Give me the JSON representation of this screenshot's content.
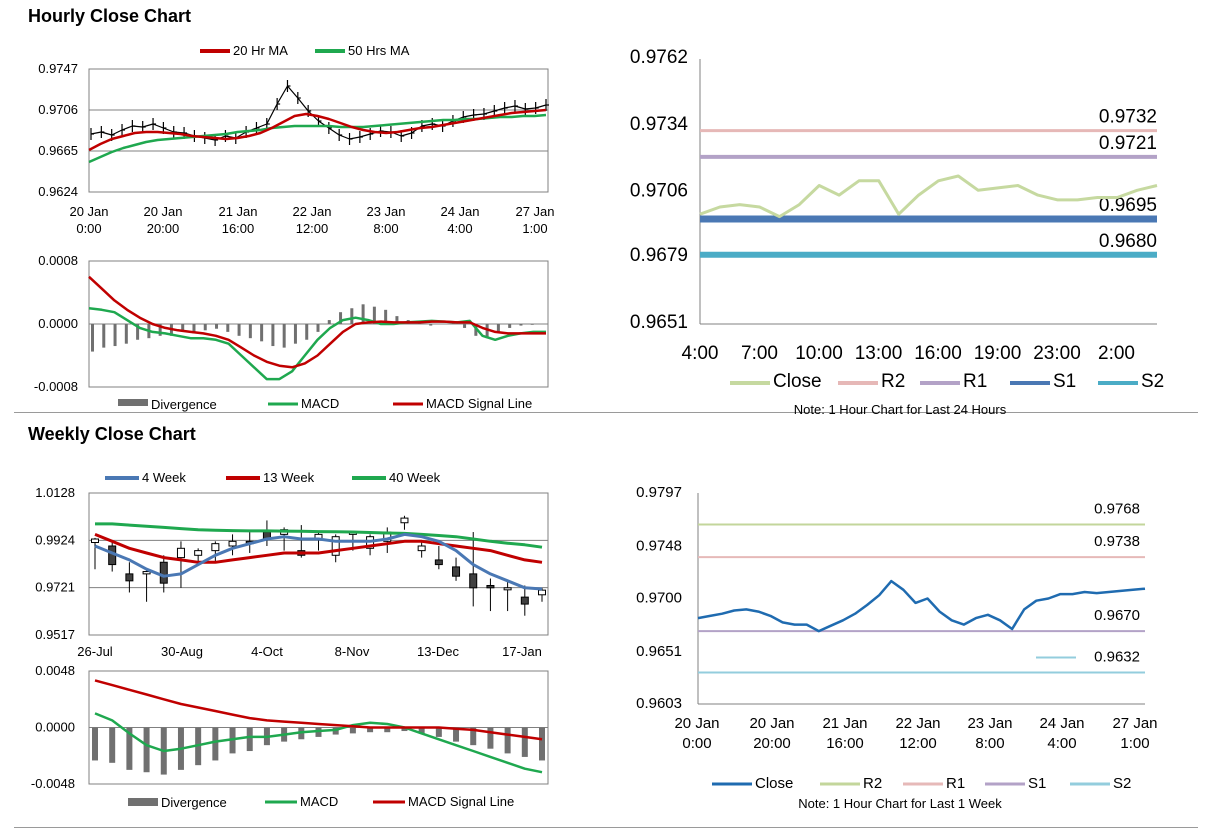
{
  "sections": {
    "hourly_title": "Hourly Close Chart",
    "weekly_title": "Weekly Close Chart"
  },
  "colors": {
    "ma20": "#c00000",
    "ma50": "#1fa84f",
    "price": "#000000",
    "divergence": "#707070",
    "macd": "#1fa84f",
    "signal": "#c00000",
    "close_light": "#c6d9a0",
    "r2_light": "#e6b8b7",
    "r1_light": "#b3a2c7",
    "s1_dark": "#4a78b4",
    "s2_dark": "#4bacc6",
    "close_blue": "#1f6bb0",
    "r2_green": "#c3d69b",
    "r1_pink": "#e6b9b8",
    "s1_purple": "#b3a2c7",
    "s2_light": "#93cddd"
  },
  "chart_data": [
    {
      "id": "hourly_price",
      "type": "line",
      "title": "Hourly Close Chart",
      "legend": [
        "20 Hr MA",
        "50 Hrs MA"
      ],
      "y_ticks": [
        "0.9747",
        "0.9706",
        "0.9665",
        "0.9624"
      ],
      "ylim": [
        0.9624,
        0.9747
      ],
      "x_ticks": [
        [
          "20 Jan",
          "0:00"
        ],
        [
          "20 Jan",
          "20:00"
        ],
        [
          "21 Jan",
          "16:00"
        ],
        [
          "22 Jan",
          "12:00"
        ],
        [
          "23 Jan",
          "8:00"
        ],
        [
          "24 Jan",
          "4:00"
        ],
        [
          "27 Jan",
          "1:00"
        ]
      ],
      "price": [
        0.9682,
        0.9684,
        0.9681,
        0.9686,
        0.969,
        0.9689,
        0.9692,
        0.9688,
        0.9684,
        0.9683,
        0.968,
        0.9678,
        0.9676,
        0.968,
        0.9678,
        0.9684,
        0.9688,
        0.9692,
        0.9712,
        0.973,
        0.9718,
        0.9705,
        0.9695,
        0.9688,
        0.9681,
        0.9677,
        0.9679,
        0.9682,
        0.9685,
        0.9684,
        0.968,
        0.9683,
        0.969,
        0.9692,
        0.969,
        0.9695,
        0.9699,
        0.9701,
        0.9702,
        0.9705,
        0.9708,
        0.971,
        0.9707,
        0.9708,
        0.9711
      ],
      "series": [
        {
          "name": "20 Hr MA",
          "values": [
            0.9666,
            0.9672,
            0.9677,
            0.968,
            0.9683,
            0.9684,
            0.9684,
            0.9683,
            0.9682,
            0.968,
            0.9679,
            0.9678,
            0.9677,
            0.9678,
            0.968,
            0.9683,
            0.9688,
            0.9694,
            0.97,
            0.9702,
            0.97,
            0.9697,
            0.9693,
            0.9689,
            0.9686,
            0.9684,
            0.9683,
            0.9684,
            0.9686,
            0.9688,
            0.9689,
            0.9691,
            0.9693,
            0.9695,
            0.9697,
            0.9699,
            0.9701,
            0.9703,
            0.9704,
            0.9705,
            0.9706
          ]
        },
        {
          "name": "50 Hrs MA",
          "values": [
            0.9654,
            0.9659,
            0.9664,
            0.9668,
            0.9671,
            0.9674,
            0.9676,
            0.9677,
            0.9678,
            0.9679,
            0.968,
            0.9681,
            0.9682,
            0.9684,
            0.9685,
            0.9686,
            0.9688,
            0.9689,
            0.969,
            0.969,
            0.969,
            0.969,
            0.9689,
            0.9689,
            0.9689,
            0.969,
            0.9691,
            0.9692,
            0.9693,
            0.9694,
            0.9695,
            0.9696,
            0.9696,
            0.9697,
            0.9697,
            0.9698,
            0.9699,
            0.9699,
            0.97,
            0.97,
            0.9701
          ]
        }
      ]
    },
    {
      "id": "hourly_macd",
      "type": "line",
      "legend": [
        "Divergence",
        "MACD",
        "MACD Signal Line"
      ],
      "y_ticks": [
        "0.0008",
        "0.0000",
        "-0.0008"
      ],
      "ylim": [
        -0.0008,
        0.0008
      ],
      "divergence": [
        -0.00035,
        -0.0003,
        -0.00028,
        -0.00025,
        -0.0002,
        -0.00018,
        -0.00015,
        -0.00015,
        -0.0001,
        -0.00012,
        -8e-05,
        -6e-05,
        -0.0001,
        -0.00015,
        -0.00018,
        -0.00022,
        -0.00028,
        -0.0003,
        -0.00025,
        -0.0002,
        -0.0001,
        5e-05,
        0.00015,
        0.0002,
        0.00025,
        0.00022,
        0.00018,
        0.0001,
        5e-05,
        2e-05,
        -2e-05,
        0.0,
        2e-05,
        -5e-05,
        -0.00015,
        -0.00018,
        -0.0001,
        -5e-05,
        -2e-05,
        -1e-05,
        0.0
      ],
      "series": [
        {
          "name": "MACD",
          "values": [
            0.0002,
            0.00018,
            0.00015,
            5e-05,
            -5e-05,
            -0.0001,
            -0.00012,
            -0.00015,
            -0.00018,
            -0.00018,
            -0.0002,
            -0.00025,
            -0.0004,
            -0.00055,
            -0.0007,
            -0.0007,
            -0.0006,
            -0.0004,
            -0.0002,
            -5e-05,
            5e-05,
            8e-05,
            5e-05,
            0.0,
            0.0,
            2e-05,
            3e-05,
            4e-05,
            3e-05,
            2e-05,
            4e-05,
            -0.00015,
            -0.0002,
            -0.00015,
            -0.00012,
            -0.0001,
            -0.0001
          ]
        },
        {
          "name": "MACD Signal Line",
          "values": [
            0.0006,
            0.00045,
            0.0003,
            0.00018,
            8e-05,
            0.0,
            -5e-05,
            -8e-05,
            -0.0001,
            -0.00012,
            -0.00015,
            -0.0002,
            -0.0003,
            -0.0004,
            -0.00048,
            -0.00053,
            -0.00055,
            -0.0005,
            -0.0004,
            -0.00025,
            -0.0001,
            0.0,
            2e-05,
            3e-05,
            2e-05,
            2e-05,
            2e-05,
            3e-05,
            3e-05,
            2e-05,
            2e-05,
            -5e-05,
            -0.0001,
            -0.00012,
            -0.00012,
            -0.00012,
            -0.00012
          ]
        }
      ]
    },
    {
      "id": "hourly_pivots",
      "type": "line",
      "note": "Note: 1 Hour Chart for Last 24 Hours",
      "y_ticks": [
        "0.9762",
        "0.9734",
        "0.9706",
        "0.9679",
        "0.9651"
      ],
      "ylim": [
        0.9651,
        0.9762
      ],
      "x_ticks": [
        "4:00",
        "7:00",
        "10:00",
        "13:00",
        "16:00",
        "19:00",
        "23:00",
        "2:00"
      ],
      "legend": [
        "Close",
        "R2",
        "R1",
        "S1",
        "S2"
      ],
      "levels": {
        "R2": 0.9732,
        "R1": 0.9721,
        "S1": 0.9695,
        "S2": 0.968
      },
      "level_labels": [
        "0.9732",
        "0.9721",
        "0.9695",
        "0.9680"
      ],
      "close": [
        0.9697,
        0.97,
        0.9701,
        0.97,
        0.9696,
        0.9701,
        0.9709,
        0.9705,
        0.9711,
        0.9711,
        0.9697,
        0.9705,
        0.9711,
        0.9713,
        0.9707,
        0.9708,
        0.9709,
        0.9705,
        0.9703,
        0.9703,
        0.9704,
        0.9704,
        0.9707,
        0.9709
      ]
    },
    {
      "id": "weekly_price",
      "type": "line",
      "title": "Weekly Close Chart",
      "legend": [
        "4 Week",
        "13 Week",
        "40 Week"
      ],
      "y_ticks": [
        "1.0128",
        "0.9924",
        "0.9721",
        "0.9517"
      ],
      "ylim": [
        0.9517,
        1.0128
      ],
      "x_ticks": [
        "26-Jul",
        "30-Aug",
        "4-Oct",
        "8-Nov",
        "13-Dec",
        "17-Jan"
      ],
      "candles": [
        [
          0.9915,
          0.9935,
          0.98,
          0.993
        ],
        [
          0.99,
          0.992,
          0.979,
          0.982
        ],
        [
          0.978,
          0.983,
          0.97,
          0.975
        ],
        [
          0.978,
          0.98,
          0.966,
          0.979
        ],
        [
          0.983,
          0.986,
          0.97,
          0.974
        ],
        [
          0.985,
          0.992,
          0.972,
          0.989
        ],
        [
          0.986,
          0.989,
          0.982,
          0.988
        ],
        [
          0.988,
          0.992,
          0.983,
          0.991
        ],
        [
          0.99,
          0.995,
          0.986,
          0.992
        ],
        [
          0.992,
          0.996,
          0.987,
          0.991
        ],
        [
          0.996,
          1.001,
          0.99,
          0.993
        ],
        [
          0.995,
          0.998,
          0.988,
          0.997
        ],
        [
          0.988,
          0.999,
          0.985,
          0.986
        ],
        [
          0.993,
          0.996,
          0.988,
          0.995
        ],
        [
          0.986,
          0.995,
          0.983,
          0.994
        ],
        [
          0.995,
          0.996,
          0.988,
          0.996
        ],
        [
          0.989,
          0.995,
          0.986,
          0.994
        ],
        [
          0.992,
          0.998,
          0.987,
          0.996
        ],
        [
          1.0,
          1.003,
          0.997,
          1.002
        ],
        [
          0.988,
          0.992,
          0.985,
          0.99
        ],
        [
          0.984,
          0.99,
          0.98,
          0.982
        ],
        [
          0.981,
          0.985,
          0.975,
          0.977
        ],
        [
          0.978,
          0.996,
          0.964,
          0.972
        ],
        [
          0.973,
          0.976,
          0.962,
          0.972
        ],
        [
          0.972,
          0.975,
          0.962,
          0.972
        ],
        [
          0.968,
          0.973,
          0.96,
          0.965
        ],
        [
          0.969,
          0.972,
          0.966,
          0.971
        ]
      ],
      "series": [
        {
          "name": "4 Week",
          "values": [
            0.99,
            0.987,
            0.984,
            0.98,
            0.977,
            0.978,
            0.982,
            0.986,
            0.989,
            0.991,
            0.993,
            0.994,
            0.993,
            0.993,
            0.992,
            0.992,
            0.992,
            0.993,
            0.995,
            0.994,
            0.992,
            0.988,
            0.982,
            0.978,
            0.975,
            0.972,
            0.9715
          ]
        },
        {
          "name": "13 Week",
          "values": [
            0.995,
            0.992,
            0.989,
            0.987,
            0.985,
            0.984,
            0.983,
            0.983,
            0.984,
            0.985,
            0.986,
            0.987,
            0.987,
            0.987,
            0.988,
            0.989,
            0.99,
            0.991,
            0.992,
            0.992,
            0.991,
            0.99,
            0.989,
            0.988,
            0.986,
            0.984,
            0.983
          ]
        },
        {
          "name": "40 Week",
          "values": [
            0.9995,
            0.9995,
            0.999,
            0.9985,
            0.998,
            0.9975,
            0.997,
            0.9968,
            0.9966,
            0.9965,
            0.9965,
            0.9964,
            0.9963,
            0.9962,
            0.9961,
            0.996,
            0.9958,
            0.9956,
            0.9954,
            0.995,
            0.9945,
            0.994,
            0.993,
            0.992,
            0.9912,
            0.9905,
            0.9895
          ]
        }
      ]
    },
    {
      "id": "weekly_macd",
      "type": "line",
      "legend": [
        "Divergence",
        "MACD",
        "MACD Signal Line"
      ],
      "y_ticks": [
        "0.0048",
        "0.0000",
        "-0.0048"
      ],
      "ylim": [
        -0.0048,
        0.0048
      ],
      "divergence": [
        -0.0028,
        -0.003,
        -0.0036,
        -0.0038,
        -0.004,
        -0.0036,
        -0.0032,
        -0.0028,
        -0.0022,
        -0.002,
        -0.0015,
        -0.0012,
        -0.001,
        -0.0008,
        -0.0006,
        -0.0005,
        -0.0004,
        -0.0004,
        -0.0003,
        -0.0005,
        -0.0008,
        -0.0012,
        -0.0015,
        -0.0018,
        -0.0022,
        -0.0025,
        -0.0028
      ],
      "series": [
        {
          "name": "MACD",
          "values": [
            0.0012,
            0.0006,
            -0.0005,
            -0.0015,
            -0.002,
            -0.0018,
            -0.0015,
            -0.0012,
            -0.001,
            -0.0008,
            -0.0008,
            -0.0006,
            -0.0004,
            -0.0003,
            -0.0002,
            0.0002,
            0.0004,
            0.0003,
            0.0,
            -0.0005,
            -0.001,
            -0.0015,
            -0.002,
            -0.0025,
            -0.003,
            -0.0035,
            -0.0038
          ]
        },
        {
          "name": "MACD Signal Line",
          "values": [
            0.004,
            0.0036,
            0.0032,
            0.0028,
            0.0024,
            0.002,
            0.0017,
            0.0014,
            0.0011,
            0.0008,
            0.0006,
            0.0005,
            0.0004,
            0.0003,
            0.0002,
            0.0001,
            0.0,
            0.0,
            0.0,
            0.0,
            0.0,
            -0.0001,
            -0.0002,
            -0.0004,
            -0.0006,
            -0.0008,
            -0.001
          ]
        }
      ]
    },
    {
      "id": "weekly_pivots",
      "type": "line",
      "note": "Note: 1 Hour Chart for Last 1 Week",
      "y_ticks": [
        "0.9797",
        "0.9748",
        "0.9700",
        "0.9651",
        "0.9603"
      ],
      "ylim": [
        0.9603,
        0.9797
      ],
      "x_ticks": [
        [
          "20 Jan",
          "0:00"
        ],
        [
          "20 Jan",
          "20:00"
        ],
        [
          "21 Jan",
          "16:00"
        ],
        [
          "22 Jan",
          "12:00"
        ],
        [
          "23 Jan",
          "8:00"
        ],
        [
          "24 Jan",
          "4:00"
        ],
        [
          "27 Jan",
          "1:00"
        ]
      ],
      "legend": [
        "Close",
        "R2",
        "R1",
        "S1",
        "S2"
      ],
      "levels": {
        "R2": 0.9768,
        "R1": 0.9738,
        "S1": 0.967,
        "S2": 0.9632
      },
      "level_labels": [
        "0.9768",
        "0.9738",
        "0.9670",
        "0.9632"
      ],
      "close": [
        0.9682,
        0.9684,
        0.9686,
        0.9689,
        0.969,
        0.9688,
        0.9684,
        0.9678,
        0.9676,
        0.9676,
        0.967,
        0.9675,
        0.968,
        0.9686,
        0.9694,
        0.9703,
        0.9716,
        0.9708,
        0.9696,
        0.97,
        0.9688,
        0.968,
        0.9676,
        0.9682,
        0.9685,
        0.968,
        0.9672,
        0.969,
        0.9698,
        0.97,
        0.9704,
        0.9704,
        0.9706,
        0.9705,
        0.9706,
        0.9707,
        0.9708,
        0.9709
      ]
    }
  ]
}
